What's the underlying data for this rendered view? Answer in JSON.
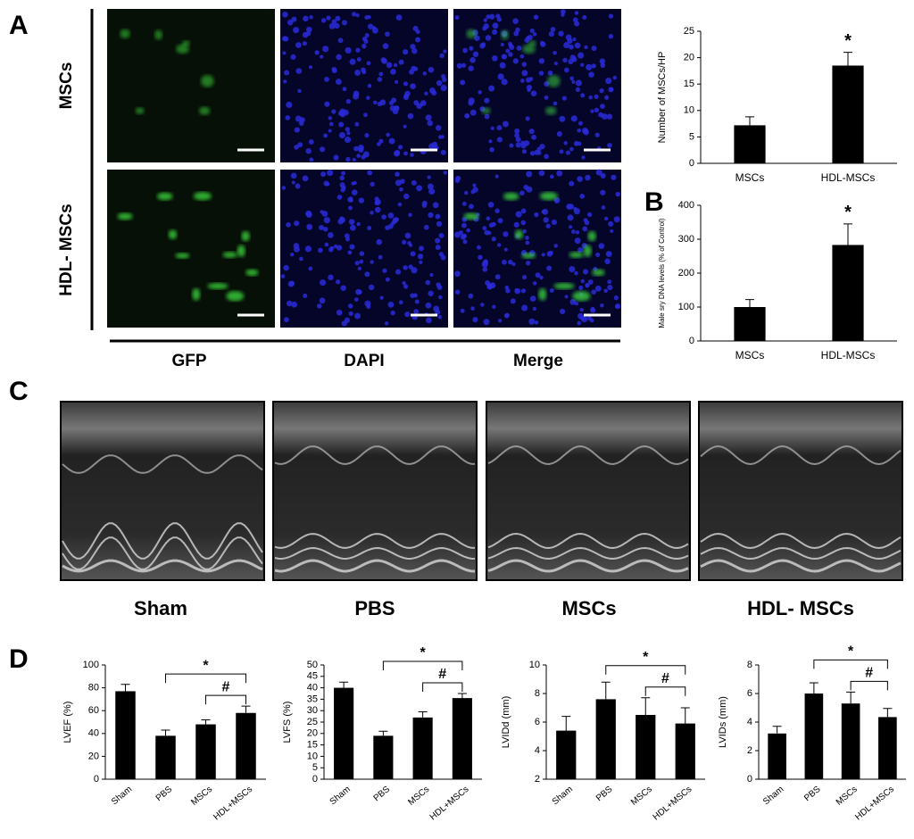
{
  "panel_labels": [
    "A",
    "B",
    "C",
    "D"
  ],
  "panel_a": {
    "rows": [
      "MSCs",
      "HDL- MSCs"
    ],
    "columns": [
      "GFP",
      "DAPI",
      "Merge"
    ]
  },
  "panel_c": {
    "labels": [
      "Sham",
      "PBS",
      "MSCs",
      "HDL- MSCs"
    ]
  },
  "chart_data": [
    {
      "type": "bar",
      "ylabel": "Number of MSCs/HP",
      "categories": [
        "MSCs",
        "HDL-MSCs"
      ],
      "values": [
        7.2,
        18.5
      ],
      "errors": [
        1.6,
        2.5
      ],
      "color": "#000000",
      "ylim": [
        0,
        25
      ],
      "yticks": [
        0,
        5,
        10,
        15,
        20,
        25
      ],
      "annotation": "*"
    },
    {
      "type": "bar",
      "ylabel": "Male sry DNA levels (% of Control)",
      "categories": [
        "MSCs",
        "HDL-MSCs"
      ],
      "values": [
        100,
        283
      ],
      "errors": [
        22,
        62
      ],
      "color": "#000000",
      "ylim": [
        0,
        400
      ],
      "yticks": [
        0,
        100,
        200,
        300,
        400
      ],
      "annotation": "*"
    },
    {
      "type": "bar",
      "ylabel": "LVEF (%)",
      "categories": [
        "Sham",
        "PBS",
        "MSCs",
        "HDL+MSCs"
      ],
      "values": [
        77,
        38,
        48,
        58
      ],
      "errors": [
        6,
        5,
        4,
        6
      ],
      "color": "#000000",
      "ylim": [
        0,
        100
      ],
      "yticks": [
        0,
        20,
        40,
        60,
        80,
        100
      ],
      "brackets": [
        "*",
        "#"
      ]
    },
    {
      "type": "bar",
      "ylabel": "LVFS (%)",
      "categories": [
        "Sham",
        "PBS",
        "MSCs",
        "HDL+MSCs"
      ],
      "values": [
        40,
        19,
        27,
        35.5
      ],
      "errors": [
        2.5,
        2,
        2.5,
        2
      ],
      "color": "#000000",
      "ylim": [
        0,
        50
      ],
      "yticks": [
        0,
        5,
        10,
        15,
        20,
        25,
        30,
        35,
        40,
        45,
        50
      ],
      "brackets": [
        "*",
        "#"
      ]
    },
    {
      "type": "bar",
      "ylabel": "LVIDd (mm)",
      "categories": [
        "Sham",
        "PBS",
        "MSCs",
        "HDL+MSCs"
      ],
      "values": [
        5.4,
        7.6,
        6.5,
        5.9
      ],
      "errors": [
        1.0,
        1.2,
        1.2,
        1.1
      ],
      "color": "#000000",
      "ylim": [
        2,
        10
      ],
      "yticks": [
        2,
        4,
        6,
        8,
        10
      ],
      "brackets": [
        "*",
        "#"
      ]
    },
    {
      "type": "bar",
      "ylabel": "LVIDs (mm)",
      "categories": [
        "Sham",
        "PBS",
        "MSCs",
        "HDL+MSCs"
      ],
      "values": [
        3.2,
        6.0,
        5.3,
        4.35
      ],
      "errors": [
        0.5,
        0.75,
        0.8,
        0.6
      ],
      "color": "#000000",
      "ylim": [
        0,
        8
      ],
      "yticks": [
        0,
        2,
        4,
        6,
        8
      ],
      "brackets": [
        "*",
        "#"
      ]
    }
  ]
}
